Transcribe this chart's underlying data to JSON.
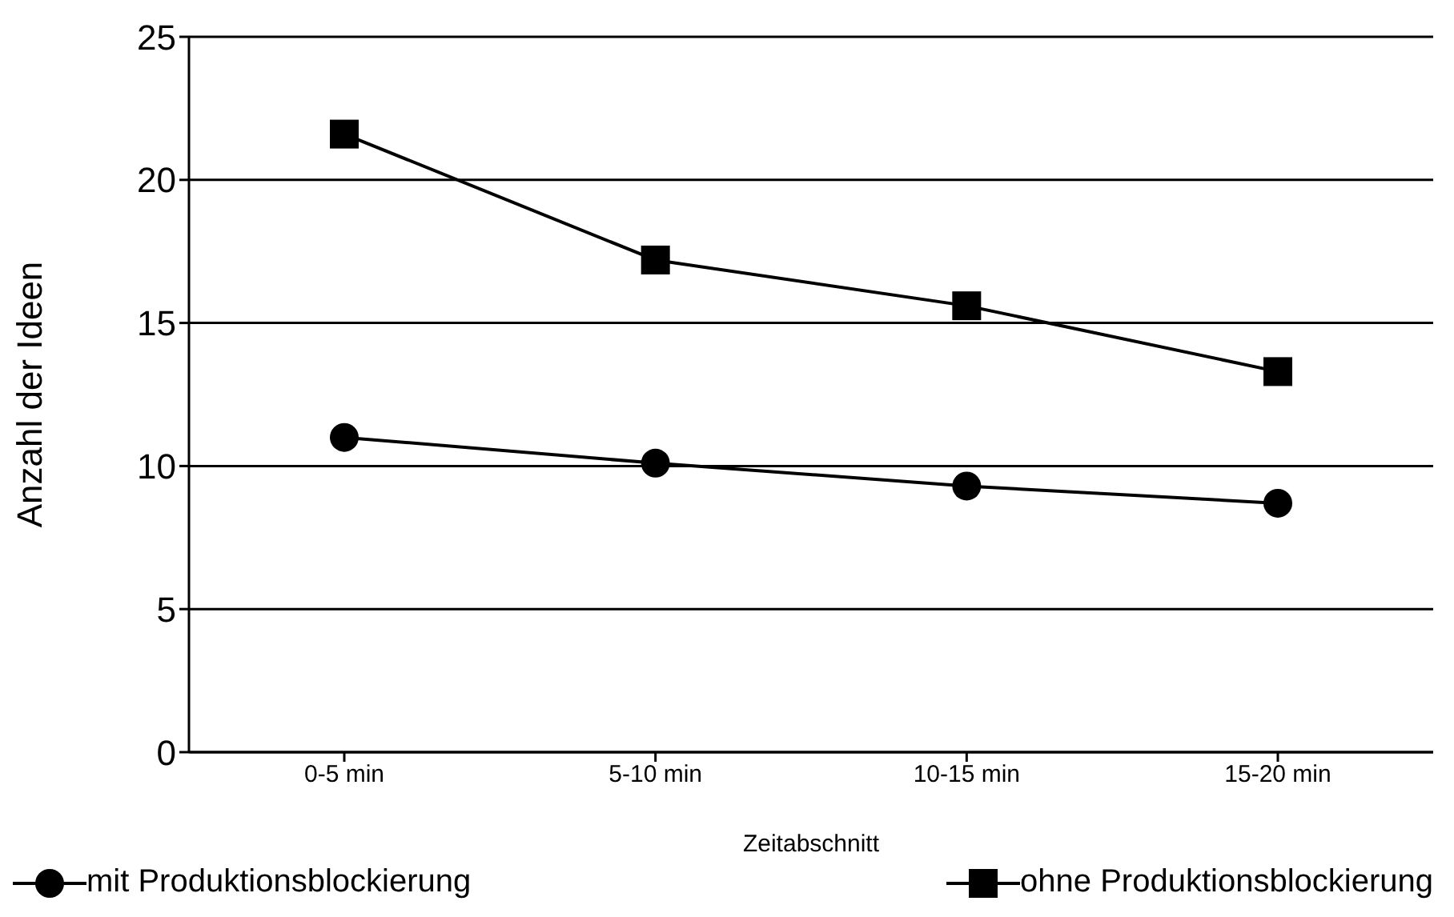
{
  "chart_data": {
    "type": "line",
    "xlabel": "Zeitabschnitt",
    "ylabel": "Anzahl der Ideen",
    "categories": [
      "0-5 min",
      "5-10 min",
      "10-15 min",
      "15-20 min"
    ],
    "series": [
      {
        "name": "mit Produktionsblockierung",
        "color": "#000000",
        "marker": "circle",
        "values": [
          11.0,
          10.1,
          9.3,
          8.7
        ]
      },
      {
        "name": "ohne Produktionsblockierung",
        "color": "#000000",
        "marker": "square",
        "values": [
          21.6,
          17.2,
          15.6,
          13.3
        ]
      }
    ],
    "ylim": [
      0,
      25
    ],
    "yticks": [
      0,
      5,
      10,
      15,
      20,
      25
    ],
    "grid": "y",
    "legend": "bottom",
    "line_style": "solid"
  }
}
